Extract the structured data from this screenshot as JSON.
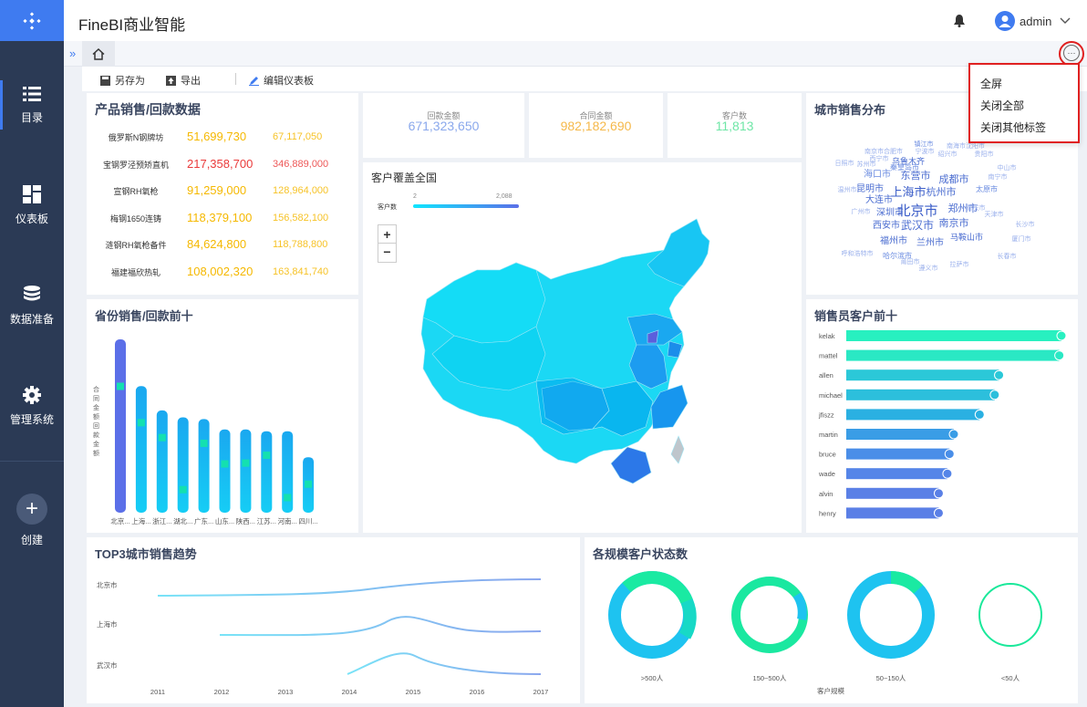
{
  "app": {
    "title": "FineBI商业智能"
  },
  "user": {
    "name": "admin"
  },
  "sidebar": {
    "items": [
      {
        "label": "目录",
        "icon": "list-icon"
      },
      {
        "label": "仪表板",
        "icon": "dashboard-icon"
      },
      {
        "label": "数据准备",
        "icon": "database-icon"
      },
      {
        "label": "管理系统",
        "icon": "gear-icon"
      },
      {
        "label": "创建",
        "icon": "plus-icon"
      }
    ]
  },
  "toolbar": {
    "save_as": "另存为",
    "export": "导出",
    "edit": "编辑仪表板"
  },
  "menu": {
    "items": [
      "全屏",
      "关闭全部",
      "关闭其他标签"
    ]
  },
  "colors": {
    "accent": "#3f7bf0",
    "sidebar": "#2b3a55",
    "highlight": "#e02020"
  },
  "product_sales": {
    "title": "产品销售/回款数据",
    "rows": [
      {
        "name": "俄罗斯N钢牌坊",
        "sales": "51,699,730",
        "payment": "67,117,050",
        "color": "#f5b800"
      },
      {
        "name": "宝钢罗泾预矫直机",
        "sales": "217,358,700",
        "payment": "346,889,000",
        "color": "#ea3a3a"
      },
      {
        "name": "宣钢RH氧枪",
        "sales": "91,259,000",
        "payment": "128,964,000",
        "color": "#f5b800"
      },
      {
        "name": "梅钢1650连铸",
        "sales": "118,379,100",
        "payment": "156,582,100",
        "color": "#f5b800"
      },
      {
        "name": "涟钢RH氧枪备件",
        "sales": "84,624,800",
        "payment": "118,788,800",
        "color": "#f5b800"
      },
      {
        "name": "福建福欣热轧",
        "sales": "108,002,320",
        "payment": "163,841,740",
        "color": "#f5b800"
      }
    ]
  },
  "kpis": [
    {
      "label": "回款金额",
      "value": "671,323,650",
      "color": "#8aa8ec"
    },
    {
      "label": "合同金额",
      "value": "982,182,690",
      "color": "#f5b84a"
    },
    {
      "label": "客户数",
      "value": "11,813",
      "color": "#6ee6a6"
    }
  ],
  "city_cloud": {
    "title": "城市销售分布",
    "words": [
      {
        "t": "镇江市",
        "c": "#6a8be0"
      },
      {
        "t": "南京市合肥市",
        "c": "#9ab0ec"
      },
      {
        "t": "宁波市",
        "c": "#9ab0ec"
      },
      {
        "t": "南海市沈阳市",
        "c": "#9ab0ec"
      },
      {
        "t": "西宁市",
        "c": "#9ab0ec"
      },
      {
        "t": "绍兴市",
        "c": "#9ab0ec"
      },
      {
        "t": "乌鲁木齐",
        "c": "#4a6cd0"
      },
      {
        "t": "贵阳市",
        "c": "#9ab0ec"
      },
      {
        "t": "日照市",
        "c": "#9ab0ec"
      },
      {
        "t": "苏州市",
        "c": "#9ab0ec"
      },
      {
        "t": "秦皇岛市",
        "c": "#6a8be0"
      },
      {
        "t": "中山市",
        "c": "#9ab0ec"
      },
      {
        "t": "南宁市",
        "c": "#9ab0ec"
      },
      {
        "t": "海口市",
        "c": "#6a8be0"
      },
      {
        "t": "东营市",
        "c": "#4a6cd0"
      },
      {
        "t": "成都市",
        "c": "#4a6cd0"
      },
      {
        "t": "温州市",
        "c": "#9ab0ec"
      },
      {
        "t": "昆明市",
        "c": "#4a6cd0"
      },
      {
        "t": "大连市",
        "c": "#4a6cd0"
      },
      {
        "t": "上海市",
        "c": "#3a5cc8"
      },
      {
        "t": "杭州市",
        "c": "#4a6cd0"
      },
      {
        "t": "太原市",
        "c": "#6a8be0"
      },
      {
        "t": "广州市",
        "c": "#9ab0ec"
      },
      {
        "t": "深圳市",
        "c": "#4a6cd0"
      },
      {
        "t": "北京市",
        "c": "#3a5cc8"
      },
      {
        "t": "郑州市",
        "c": "#4a6cd0"
      },
      {
        "t": "重庆市",
        "c": "#9ab0ec"
      },
      {
        "t": "天津市",
        "c": "#9ab0ec"
      },
      {
        "t": "西安市",
        "c": "#4a6cd0"
      },
      {
        "t": "武汉市",
        "c": "#4a6cd0"
      },
      {
        "t": "南京市",
        "c": "#4a6cd0"
      },
      {
        "t": "长沙市",
        "c": "#9ab0ec"
      },
      {
        "t": "福州市",
        "c": "#4a6cd0"
      },
      {
        "t": "兰州市",
        "c": "#4a6cd0"
      },
      {
        "t": "马鞍山市",
        "c": "#4a6cd0"
      },
      {
        "t": "厦门市",
        "c": "#9ab0ec"
      },
      {
        "t": "哈尔滨市",
        "c": "#6a8be0"
      },
      {
        "t": "呼和浩特市",
        "c": "#9ab0ec"
      },
      {
        "t": "莆田市",
        "c": "#9ab0ec"
      },
      {
        "t": "长春市",
        "c": "#9ab0ec"
      },
      {
        "t": "遵义市",
        "c": "#9ab0ec"
      },
      {
        "t": "拉萨市",
        "c": "#9ab0ec"
      }
    ]
  },
  "map": {
    "title": "客户覆盖全国",
    "legend_label": "客户数",
    "legend_min": "2",
    "legend_max": "2,088",
    "zoom_in": "+",
    "zoom_out": "−"
  },
  "province_chart": {
    "title": "省份销售/回款前十",
    "ylabel": "合同金额回款金额",
    "categories": [
      "北京...",
      "上海...",
      "浙江...",
      "湖北...",
      "广东...",
      "山东...",
      "陕西...",
      "江苏...",
      "河南...",
      "四川..."
    ],
    "heights": [
      1.0,
      0.73,
      0.59,
      0.55,
      0.54,
      0.48,
      0.48,
      0.47,
      0.47,
      0.32
    ],
    "marker": [
      0.75,
      0.74,
      0.77,
      0.28,
      0.78,
      0.63,
      0.64,
      0.75,
      0.23,
      0.58
    ]
  },
  "salesman_chart": {
    "title": "销售员客户前十",
    "names": [
      "kelak",
      "mattel",
      "allen",
      "michael",
      "jfiszz",
      "martin",
      "bruce",
      "wade",
      "alvin",
      "henry"
    ],
    "values": [
      100,
      99,
      71,
      69,
      62,
      50,
      48,
      47,
      43,
      43
    ]
  },
  "trend_chart": {
    "title": "TOP3城市销售趋势",
    "rows": [
      "北京市",
      "上海市",
      "武汉市"
    ],
    "years": [
      "2011",
      "2012",
      "2013",
      "2014",
      "2015",
      "2016",
      "2017"
    ]
  },
  "donut_chart": {
    "title": "各规模客户状态数",
    "xlabel": "客户规模",
    "categories": [
      ">500人",
      "150~500人",
      "50~150人",
      "<50人"
    ]
  }
}
